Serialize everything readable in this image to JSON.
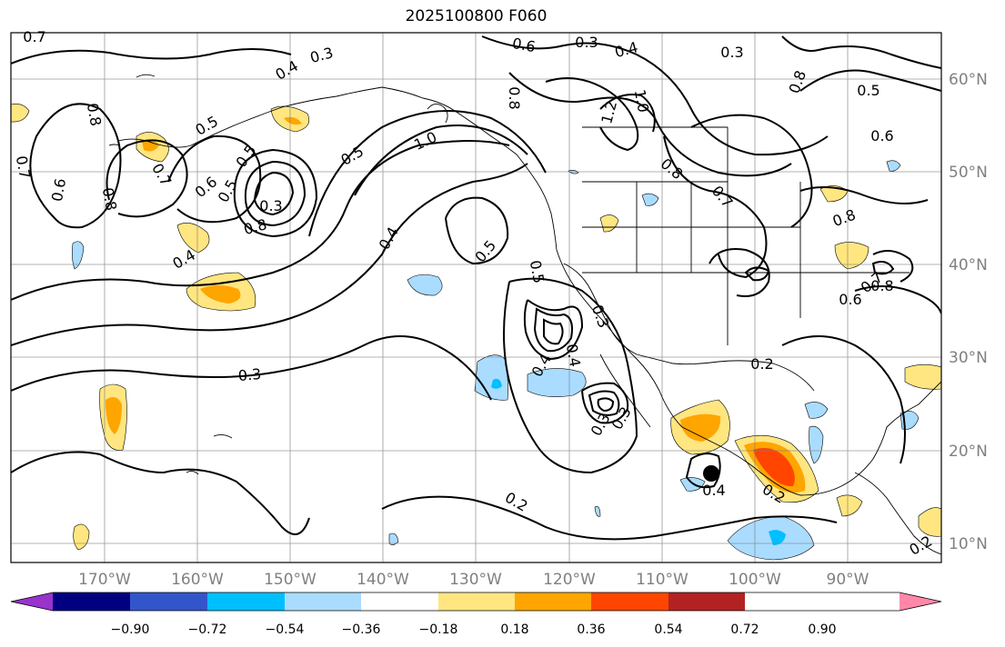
{
  "title": "2025100800 F060",
  "lat_labels": [
    "60°N",
    "50°N",
    "40°N",
    "30°N",
    "20°N",
    "10°N"
  ],
  "lon_labels": [
    "170°W",
    "160°W",
    "150°W",
    "140°W",
    "130°W",
    "120°W",
    "110°W",
    "100°W",
    "90°W"
  ],
  "colorbar": {
    "ticks": [
      "−0.90",
      "−0.72",
      "−0.54",
      "−0.36",
      "−0.18",
      "0.18",
      "0.36",
      "0.54",
      "0.72",
      "0.90"
    ],
    "colors": [
      "#9933cc",
      "#000080",
      "#3355cc",
      "#00bfff",
      "#aadcff",
      "#ffffff",
      "#ffe680",
      "#ffa500",
      "#ff4500",
      "#b22222",
      "#ff88aa"
    ]
  },
  "contour_labels": [
    "0.7",
    "0.3",
    "0.4",
    "0.6",
    "0.3",
    "0.4",
    "0.3",
    "0.5",
    "0.8",
    "0.7",
    "0.8",
    "0.5",
    "0.6",
    "0.7",
    "0.8",
    "0.5",
    "0.6",
    "0.5",
    "0.6",
    "0.5",
    "0.8",
    "0.3",
    "0.4",
    "1.0",
    "0.8",
    "1.2",
    "1.0",
    "0.8",
    "0.7",
    "0.4",
    "0.5",
    "0.5",
    "0.3",
    "0.4",
    "0.4",
    "0.3",
    "0.3",
    "0.8",
    "0.8",
    "0.6",
    "0.7",
    "0.3",
    "0.2",
    "0.2",
    "0.4",
    "0.2",
    "0.2"
  ],
  "colors": {
    "contour": "#000000",
    "grid": "#808080",
    "coast": "#000000"
  }
}
